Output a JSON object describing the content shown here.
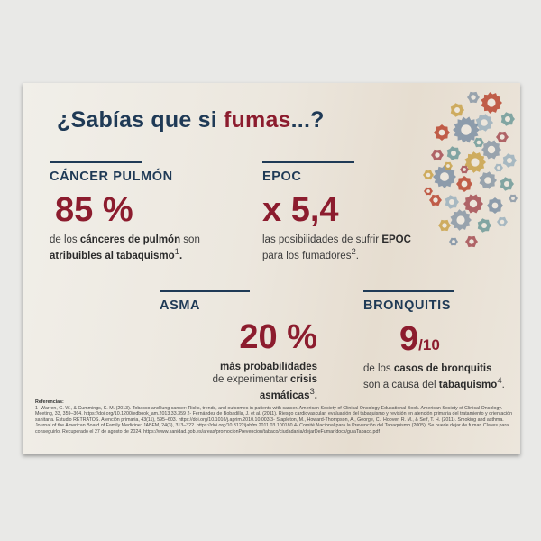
{
  "title": {
    "prefix": "¿Sabías que si ",
    "highlight": "fumas",
    "suffix": "...?"
  },
  "stats": {
    "cancer": {
      "label": "CÁNCER PULMÓN",
      "value": "85 %",
      "desc_1": "de los ",
      "desc_2": "cánceres de pulmón",
      "desc_3": " son ",
      "desc_4": "atribuibles al tabaquismo",
      "sup": "1",
      "desc_end": "."
    },
    "epoc": {
      "label": "EPOC",
      "value": "x 5,4",
      "desc_1": "las posibilidades de sufrir ",
      "desc_2": "EPOC",
      "desc_3": " para los fumadores",
      "sup": "2",
      "desc_end": "."
    },
    "asma": {
      "label": "ASMA",
      "value": "20 %",
      "desc_1": "más probabilidades",
      "desc_2": "de experimentar ",
      "desc_3": "crisis asmáticas",
      "sup": "3",
      "desc_end": "."
    },
    "bronquitis": {
      "label": "BRONQUITIS",
      "value": "9",
      "denominator": "/10",
      "desc_1": "de los ",
      "desc_2": "casos de bronquitis",
      "desc_3": " son a causa del ",
      "desc_4": "tabaquismo",
      "sup": "4",
      "desc_end": "."
    }
  },
  "references": {
    "heading": "Referencias:",
    "text": "1- Warren, G. W., & Cummings, K. M. (2013). Tobacco and lung cancer: Risks, trends, and outcomes in patients with cancer. American Society of Clinical Oncology Educational Book. American Society of Clinical Oncology. Meeting, 33, 359–364. https://doi.org/10.1200/edbook_am.2013.33.359 2- Fernández de Bobadilla, J. et al. (2011). Riesgo cardiovascular: evaluación del tabaquismo y revisión en atención primaria del tratamiento y orientación sanitaria. Estudio RETRATOS. Atención primaria, 43(11), 595–603. https://doi.org/10.1016/j.aprim.2010.10.003 3- Stapleton, M., Howard-Thompson, A., George, C., Hoover, R. M., & Self, T. H. (2011). Smoking and asthma. Journal of the American Board of Family Medicine: JABFM, 24(3), 313–322. https://doi.org/10.3122/jabfm.2011.03.100180 4- Comité Nacional para la Prevención del Tabaquismo (2005). Se puede dejar de fumar. Claves para conseguirlo. Recuperado el 27 de agosto de 2024. https://www.sanidad.gob.es/areas/promocionPrevencion/tabaco/ciudadania/dejarDeFumar/docs/guiaTabaco.pdf"
  },
  "colors": {
    "navy": "#1f3a56",
    "maroon": "#8c1c2e",
    "gear_palette": [
      "#b8452f",
      "#8a98a6",
      "#6f9a99",
      "#c9a24a",
      "#9bb0bd",
      "#a54e53",
      "#7d8fa3"
    ]
  },
  "icons": [
    "gears-brain-icon"
  ]
}
